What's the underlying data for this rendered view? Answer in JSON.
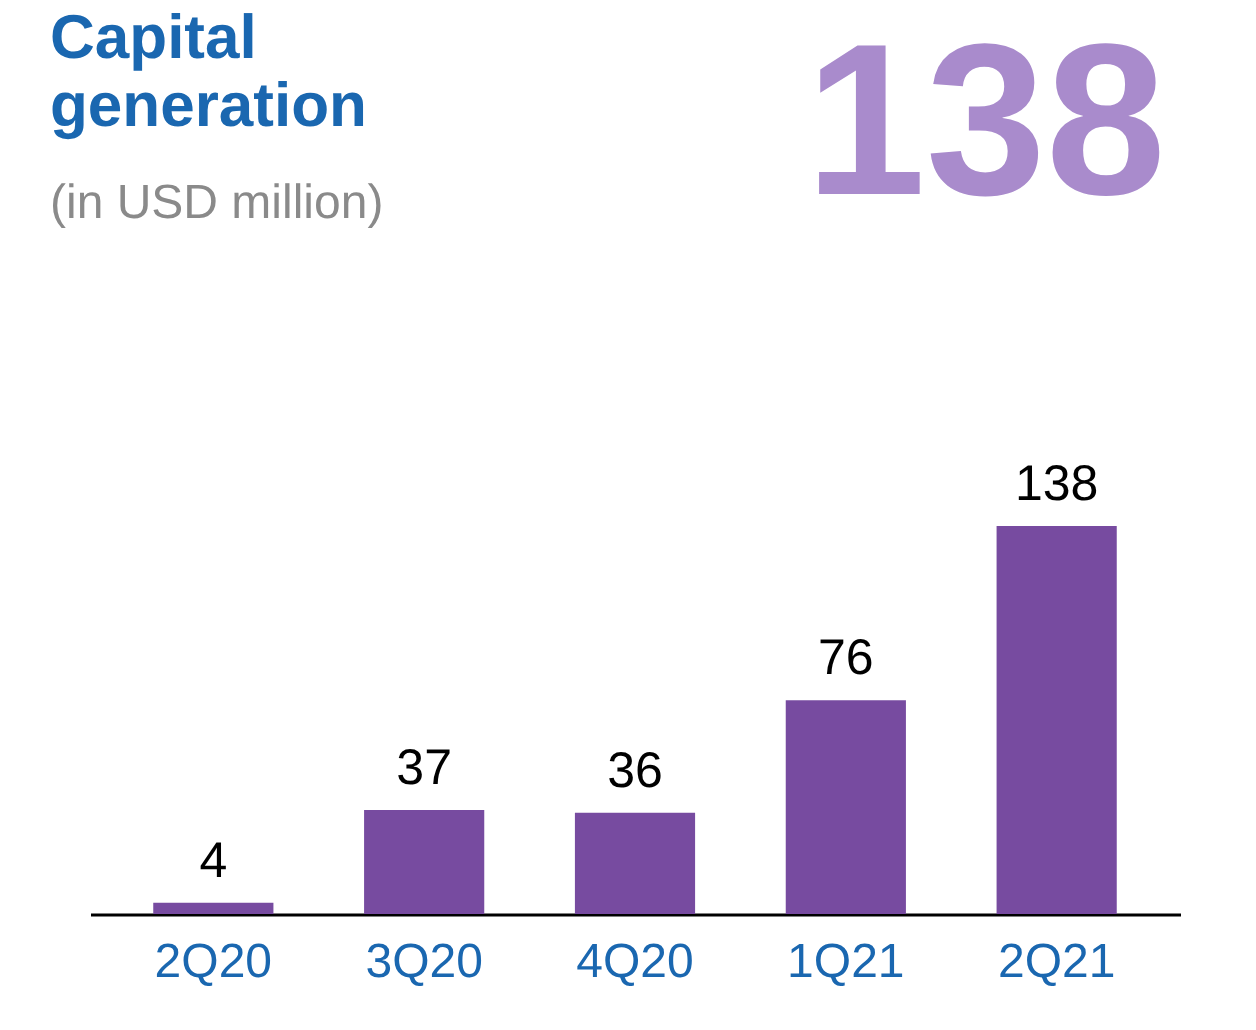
{
  "chart_data": {
    "type": "bar",
    "title": "Capital generation",
    "subtitle": "(in USD million)",
    "annotations": [
      "138"
    ],
    "categories": [
      "2Q20",
      "3Q20",
      "4Q20",
      "1Q21",
      "2Q21"
    ],
    "values": [
      4,
      37,
      36,
      76,
      138
    ],
    "color": "#774ba0",
    "data_labels": true
  }
}
